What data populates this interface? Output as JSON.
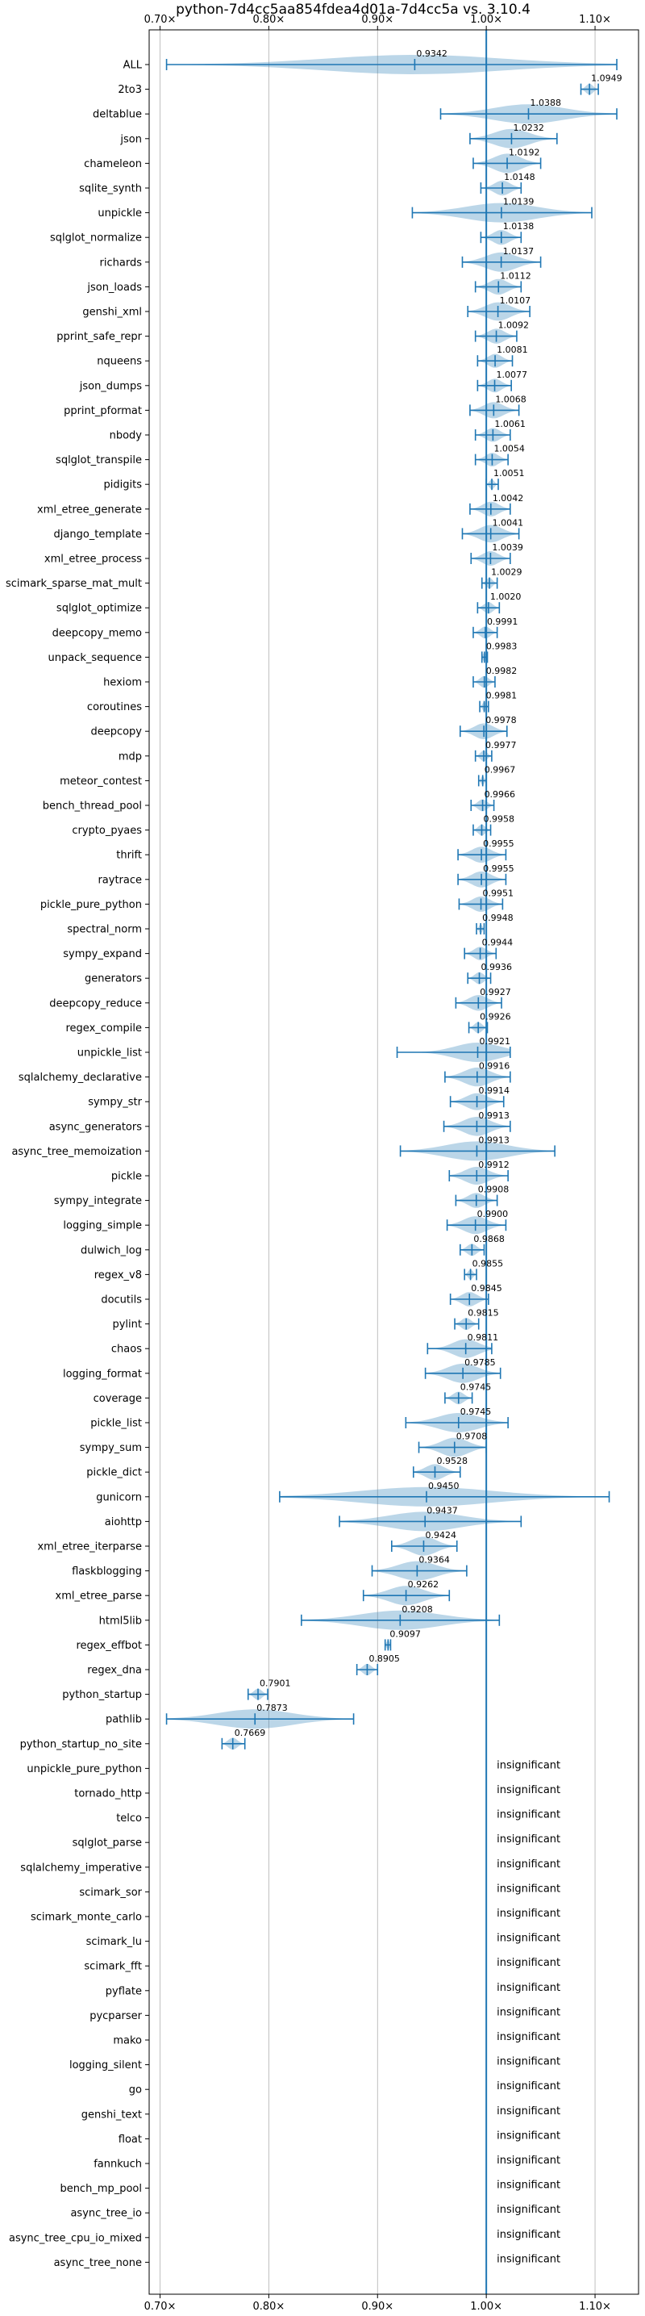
{
  "chart_data": {
    "type": "violin",
    "title": "python-7d4cc5aa854fdea4d01a-7d4cc5a vs. 3.10.4",
    "xlabel": "",
    "ylabel": "",
    "xlim": [
      0.69,
      1.14
    ],
    "xticks": [
      0.7,
      0.8,
      0.9,
      1.0,
      1.1
    ],
    "xtick_labels": [
      "0.70×",
      "0.80×",
      "0.90×",
      "1.00×",
      "1.10×"
    ],
    "reference_line": 1.0,
    "grid": true,
    "insignificant_text": "insignificant",
    "benchmarks": [
      {
        "name": "ALL",
        "mean": 0.9342,
        "label": "0.9342",
        "min": 0.706,
        "max": 1.12,
        "significant": true
      },
      {
        "name": "2to3",
        "mean": 1.0949,
        "label": "1.0949",
        "min": 1.087,
        "max": 1.103,
        "significant": true
      },
      {
        "name": "deltablue",
        "mean": 1.0388,
        "label": "1.0388",
        "min": 0.958,
        "max": 1.12,
        "significant": true
      },
      {
        "name": "json",
        "mean": 1.0232,
        "label": "1.0232",
        "min": 0.985,
        "max": 1.065,
        "significant": true
      },
      {
        "name": "chameleon",
        "mean": 1.0192,
        "label": "1.0192",
        "min": 0.988,
        "max": 1.05,
        "significant": true
      },
      {
        "name": "sqlite_synth",
        "mean": 1.0148,
        "label": "1.0148",
        "min": 0.995,
        "max": 1.032,
        "significant": true
      },
      {
        "name": "unpickle",
        "mean": 1.0139,
        "label": "1.0139",
        "min": 0.932,
        "max": 1.097,
        "significant": true
      },
      {
        "name": "sqlglot_normalize",
        "mean": 1.0138,
        "label": "1.0138",
        "min": 0.995,
        "max": 1.032,
        "significant": true
      },
      {
        "name": "richards",
        "mean": 1.0137,
        "label": "1.0137",
        "min": 0.978,
        "max": 1.05,
        "significant": true
      },
      {
        "name": "json_loads",
        "mean": 1.0112,
        "label": "1.0112",
        "min": 0.99,
        "max": 1.032,
        "significant": true
      },
      {
        "name": "genshi_xml",
        "mean": 1.0107,
        "label": "1.0107",
        "min": 0.983,
        "max": 1.04,
        "significant": true
      },
      {
        "name": "pprint_safe_repr",
        "mean": 1.0092,
        "label": "1.0092",
        "min": 0.99,
        "max": 1.028,
        "significant": true
      },
      {
        "name": "nqueens",
        "mean": 1.0081,
        "label": "1.0081",
        "min": 0.992,
        "max": 1.024,
        "significant": true
      },
      {
        "name": "json_dumps",
        "mean": 1.0077,
        "label": "1.0077",
        "min": 0.992,
        "max": 1.023,
        "significant": true
      },
      {
        "name": "pprint_pformat",
        "mean": 1.0068,
        "label": "1.0068",
        "min": 0.985,
        "max": 1.03,
        "significant": true
      },
      {
        "name": "nbody",
        "mean": 1.0061,
        "label": "1.0061",
        "min": 0.99,
        "max": 1.022,
        "significant": true
      },
      {
        "name": "sqlglot_transpile",
        "mean": 1.0054,
        "label": "1.0054",
        "min": 0.99,
        "max": 1.02,
        "significant": true
      },
      {
        "name": "pidigits",
        "mean": 1.0051,
        "label": "1.0051",
        "min": 1.0,
        "max": 1.011,
        "significant": true
      },
      {
        "name": "xml_etree_generate",
        "mean": 1.0042,
        "label": "1.0042",
        "min": 0.985,
        "max": 1.022,
        "significant": true
      },
      {
        "name": "django_template",
        "mean": 1.0041,
        "label": "1.0041",
        "min": 0.978,
        "max": 1.03,
        "significant": true
      },
      {
        "name": "xml_etree_process",
        "mean": 1.0039,
        "label": "1.0039",
        "min": 0.986,
        "max": 1.022,
        "significant": true
      },
      {
        "name": "scimark_sparse_mat_mult",
        "mean": 1.0029,
        "label": "1.0029",
        "min": 0.996,
        "max": 1.01,
        "significant": true
      },
      {
        "name": "sqlglot_optimize",
        "mean": 1.002,
        "label": "1.0020",
        "min": 0.992,
        "max": 1.012,
        "significant": true
      },
      {
        "name": "deepcopy_memo",
        "mean": 0.9991,
        "label": "0.9991",
        "min": 0.988,
        "max": 1.01,
        "significant": true
      },
      {
        "name": "unpack_sequence",
        "mean": 0.9983,
        "label": "0.9983",
        "min": 0.996,
        "max": 1.001,
        "significant": true
      },
      {
        "name": "hexiom",
        "mean": 0.9982,
        "label": "0.9982",
        "min": 0.988,
        "max": 1.008,
        "significant": true
      },
      {
        "name": "coroutines",
        "mean": 0.9981,
        "label": "0.9981",
        "min": 0.994,
        "max": 1.002,
        "significant": true
      },
      {
        "name": "deepcopy",
        "mean": 0.9978,
        "label": "0.9978",
        "min": 0.976,
        "max": 1.019,
        "significant": true
      },
      {
        "name": "mdp",
        "mean": 0.9977,
        "label": "0.9977",
        "min": 0.99,
        "max": 1.005,
        "significant": true
      },
      {
        "name": "meteor_contest",
        "mean": 0.9967,
        "label": "0.9967",
        "min": 0.993,
        "max": 1.0,
        "significant": true
      },
      {
        "name": "bench_thread_pool",
        "mean": 0.9966,
        "label": "0.9966",
        "min": 0.986,
        "max": 1.007,
        "significant": true
      },
      {
        "name": "crypto_pyaes",
        "mean": 0.9958,
        "label": "0.9958",
        "min": 0.988,
        "max": 1.004,
        "significant": true
      },
      {
        "name": "thrift",
        "mean": 0.9955,
        "label": "0.9955",
        "min": 0.974,
        "max": 1.018,
        "significant": true
      },
      {
        "name": "raytrace",
        "mean": 0.9955,
        "label": "0.9955",
        "min": 0.974,
        "max": 1.018,
        "significant": true
      },
      {
        "name": "pickle_pure_python",
        "mean": 0.9951,
        "label": "0.9951",
        "min": 0.975,
        "max": 1.015,
        "significant": true
      },
      {
        "name": "spectral_norm",
        "mean": 0.9948,
        "label": "0.9948",
        "min": 0.991,
        "max": 0.998,
        "significant": true
      },
      {
        "name": "sympy_expand",
        "mean": 0.9944,
        "label": "0.9944",
        "min": 0.98,
        "max": 1.009,
        "significant": true
      },
      {
        "name": "generators",
        "mean": 0.9936,
        "label": "0.9936",
        "min": 0.983,
        "max": 1.004,
        "significant": true
      },
      {
        "name": "deepcopy_reduce",
        "mean": 0.9927,
        "label": "0.9927",
        "min": 0.972,
        "max": 1.014,
        "significant": true
      },
      {
        "name": "regex_compile",
        "mean": 0.9926,
        "label": "0.9926",
        "min": 0.984,
        "max": 1.001,
        "significant": true
      },
      {
        "name": "unpickle_list",
        "mean": 0.9921,
        "label": "0.9921",
        "min": 0.918,
        "max": 1.022,
        "significant": true
      },
      {
        "name": "sqlalchemy_declarative",
        "mean": 0.9916,
        "label": "0.9916",
        "min": 0.962,
        "max": 1.022,
        "significant": true
      },
      {
        "name": "sympy_str",
        "mean": 0.9914,
        "label": "0.9914",
        "min": 0.967,
        "max": 1.016,
        "significant": true
      },
      {
        "name": "async_generators",
        "mean": 0.9913,
        "label": "0.9913",
        "min": 0.961,
        "max": 1.022,
        "significant": true
      },
      {
        "name": "async_tree_memoization",
        "mean": 0.9913,
        "label": "0.9913",
        "min": 0.921,
        "max": 1.063,
        "significant": true
      },
      {
        "name": "pickle",
        "mean": 0.9912,
        "label": "0.9912",
        "min": 0.966,
        "max": 1.02,
        "significant": true
      },
      {
        "name": "sympy_integrate",
        "mean": 0.9908,
        "label": "0.9908",
        "min": 0.972,
        "max": 1.01,
        "significant": true
      },
      {
        "name": "logging_simple",
        "mean": 0.99,
        "label": "0.9900",
        "min": 0.964,
        "max": 1.018,
        "significant": true
      },
      {
        "name": "dulwich_log",
        "mean": 0.9868,
        "label": "0.9868",
        "min": 0.976,
        "max": 0.998,
        "significant": true
      },
      {
        "name": "regex_v8",
        "mean": 0.9855,
        "label": "0.9855",
        "min": 0.98,
        "max": 0.991,
        "significant": true
      },
      {
        "name": "docutils",
        "mean": 0.9845,
        "label": "0.9845",
        "min": 0.967,
        "max": 1.002,
        "significant": true
      },
      {
        "name": "pylint",
        "mean": 0.9815,
        "label": "0.9815",
        "min": 0.971,
        "max": 0.993,
        "significant": true
      },
      {
        "name": "chaos",
        "mean": 0.9811,
        "label": "0.9811",
        "min": 0.946,
        "max": 1.005,
        "significant": true
      },
      {
        "name": "logging_format",
        "mean": 0.9785,
        "label": "0.9785",
        "min": 0.944,
        "max": 1.013,
        "significant": true
      },
      {
        "name": "coverage",
        "mean": 0.9745,
        "label": "0.9745",
        "min": 0.962,
        "max": 0.987,
        "significant": true
      },
      {
        "name": "pickle_list",
        "mean": 0.9745,
        "label": "0.9745",
        "min": 0.926,
        "max": 1.02,
        "significant": true
      },
      {
        "name": "sympy_sum",
        "mean": 0.9708,
        "label": "0.9708",
        "min": 0.938,
        "max": 1.0,
        "significant": true
      },
      {
        "name": "pickle_dict",
        "mean": 0.9528,
        "label": "0.9528",
        "min": 0.933,
        "max": 0.976,
        "significant": true
      },
      {
        "name": "gunicorn",
        "mean": 0.945,
        "label": "0.9450",
        "min": 0.81,
        "max": 1.113,
        "significant": true
      },
      {
        "name": "aiohttp",
        "mean": 0.9437,
        "label": "0.9437",
        "min": 0.865,
        "max": 1.032,
        "significant": true
      },
      {
        "name": "xml_etree_iterparse",
        "mean": 0.9424,
        "label": "0.9424",
        "min": 0.913,
        "max": 0.973,
        "significant": true
      },
      {
        "name": "flaskblogging",
        "mean": 0.9364,
        "label": "0.9364",
        "min": 0.895,
        "max": 0.982,
        "significant": true
      },
      {
        "name": "xml_etree_parse",
        "mean": 0.9262,
        "label": "0.9262",
        "min": 0.887,
        "max": 0.966,
        "significant": true
      },
      {
        "name": "html5lib",
        "mean": 0.9208,
        "label": "0.9208",
        "min": 0.83,
        "max": 1.012,
        "significant": true
      },
      {
        "name": "regex_effbot",
        "mean": 0.9097,
        "label": "0.9097",
        "min": 0.907,
        "max": 0.912,
        "significant": true
      },
      {
        "name": "regex_dna",
        "mean": 0.8905,
        "label": "0.8905",
        "min": 0.881,
        "max": 0.9,
        "significant": true
      },
      {
        "name": "python_startup",
        "mean": 0.7901,
        "label": "0.7901",
        "min": 0.781,
        "max": 0.799,
        "significant": true
      },
      {
        "name": "pathlib",
        "mean": 0.7873,
        "label": "0.7873",
        "min": 0.706,
        "max": 0.878,
        "significant": true
      },
      {
        "name": "python_startup_no_site",
        "mean": 0.7669,
        "label": "0.7669",
        "min": 0.757,
        "max": 0.778,
        "significant": true
      },
      {
        "name": "unpickle_pure_python",
        "significant": false
      },
      {
        "name": "tornado_http",
        "significant": false
      },
      {
        "name": "telco",
        "significant": false
      },
      {
        "name": "sqlglot_parse",
        "significant": false
      },
      {
        "name": "sqlalchemy_imperative",
        "significant": false
      },
      {
        "name": "scimark_sor",
        "significant": false
      },
      {
        "name": "scimark_monte_carlo",
        "significant": false
      },
      {
        "name": "scimark_lu",
        "significant": false
      },
      {
        "name": "scimark_fft",
        "significant": false
      },
      {
        "name": "pyflate",
        "significant": false
      },
      {
        "name": "pycparser",
        "significant": false
      },
      {
        "name": "mako",
        "significant": false
      },
      {
        "name": "logging_silent",
        "significant": false
      },
      {
        "name": "go",
        "significant": false
      },
      {
        "name": "genshi_text",
        "significant": false
      },
      {
        "name": "float",
        "significant": false
      },
      {
        "name": "fannkuch",
        "significant": false
      },
      {
        "name": "bench_mp_pool",
        "significant": false
      },
      {
        "name": "async_tree_io",
        "significant": false
      },
      {
        "name": "async_tree_cpu_io_mixed",
        "significant": false
      },
      {
        "name": "async_tree_none",
        "significant": false
      }
    ]
  },
  "colors": {
    "accent": "#1f77b4",
    "violin_fill": "#1f77b4",
    "grid": "#b0b0b0",
    "text": "#000000"
  }
}
